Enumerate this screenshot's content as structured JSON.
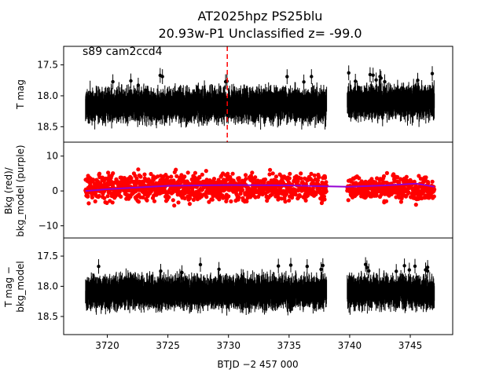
{
  "title": {
    "line1": "AT2025hpz  PS25blu",
    "line2": "20.93w-P1 Unclassified z= -99.0"
  },
  "annotation": "s89 cam2ccd4",
  "colors": {
    "data": "#000000",
    "bkg": "#ff0000",
    "bkg_model": "#9400d3",
    "marker_line": "#ff0000"
  },
  "chart_data": [
    {
      "name": "top-panel",
      "type": "scatter",
      "ylabel": "T mag",
      "ylim": [
        18.75,
        17.2
      ],
      "yinverted": true,
      "yticks": [
        17.5,
        18.0,
        18.5
      ],
      "ytick_labels": [
        "17.5",
        "18.0",
        "18.5"
      ],
      "vline_x": 3729.9,
      "segments": [
        {
          "x_start": 3718.2,
          "x_end": 3738.1,
          "center": 18.15,
          "spread": 0.2
        },
        {
          "x_start": 3739.8,
          "x_end": 3747.0,
          "center": 18.1,
          "spread": 0.2
        }
      ]
    },
    {
      "name": "middle-panel",
      "type": "scatter",
      "ylabel_line1": "Bkg (red)/",
      "ylabel_line2": "bkg_model (purple)",
      "ylim": [
        -13.5,
        14
      ],
      "yticks": [
        10,
        0,
        -10
      ],
      "ytick_labels": [
        "10",
        "0",
        "−10"
      ],
      "segments": [
        {
          "x_start": 3718.2,
          "x_end": 3738.1,
          "center": 1.0,
          "spread": 3.0
        },
        {
          "x_start": 3739.8,
          "x_end": 3747.0,
          "center": 0.8,
          "spread": 2.5
        }
      ],
      "model_points": [
        {
          "x": 3718.2,
          "y": 0.0
        },
        {
          "x": 3720.0,
          "y": 0.5
        },
        {
          "x": 3725.0,
          "y": 1.5
        },
        {
          "x": 3730.0,
          "y": 1.7
        },
        {
          "x": 3735.0,
          "y": 1.6
        },
        {
          "x": 3738.1,
          "y": 1.3
        },
        {
          "x": 3739.8,
          "y": 1.2
        },
        {
          "x": 3743.0,
          "y": 1.6
        },
        {
          "x": 3745.5,
          "y": 2.1
        },
        {
          "x": 3747.0,
          "y": 1.2
        }
      ]
    },
    {
      "name": "bottom-panel",
      "type": "scatter",
      "ylabel_line1": "T mag −",
      "ylabel_line2": "bkg_model",
      "ylim": [
        18.8,
        17.2
      ],
      "yinverted": true,
      "yticks": [
        17.5,
        18.0,
        18.5
      ],
      "ytick_labels": [
        "17.5",
        "18.0",
        "18.5"
      ],
      "segments": [
        {
          "x_start": 3718.2,
          "x_end": 3738.1,
          "center": 18.1,
          "spread": 0.2
        },
        {
          "x_start": 3739.8,
          "x_end": 3747.0,
          "center": 18.1,
          "spread": 0.2
        }
      ]
    }
  ],
  "xaxis": {
    "xlim": [
      3716.4,
      3748.5
    ],
    "xticks": [
      3720,
      3725,
      3730,
      3735,
      3740,
      3745
    ],
    "xtick_labels": [
      "3720",
      "3725",
      "3730",
      "3735",
      "3740",
      "3745"
    ],
    "xlabel": "BTJD −2 457 000"
  }
}
